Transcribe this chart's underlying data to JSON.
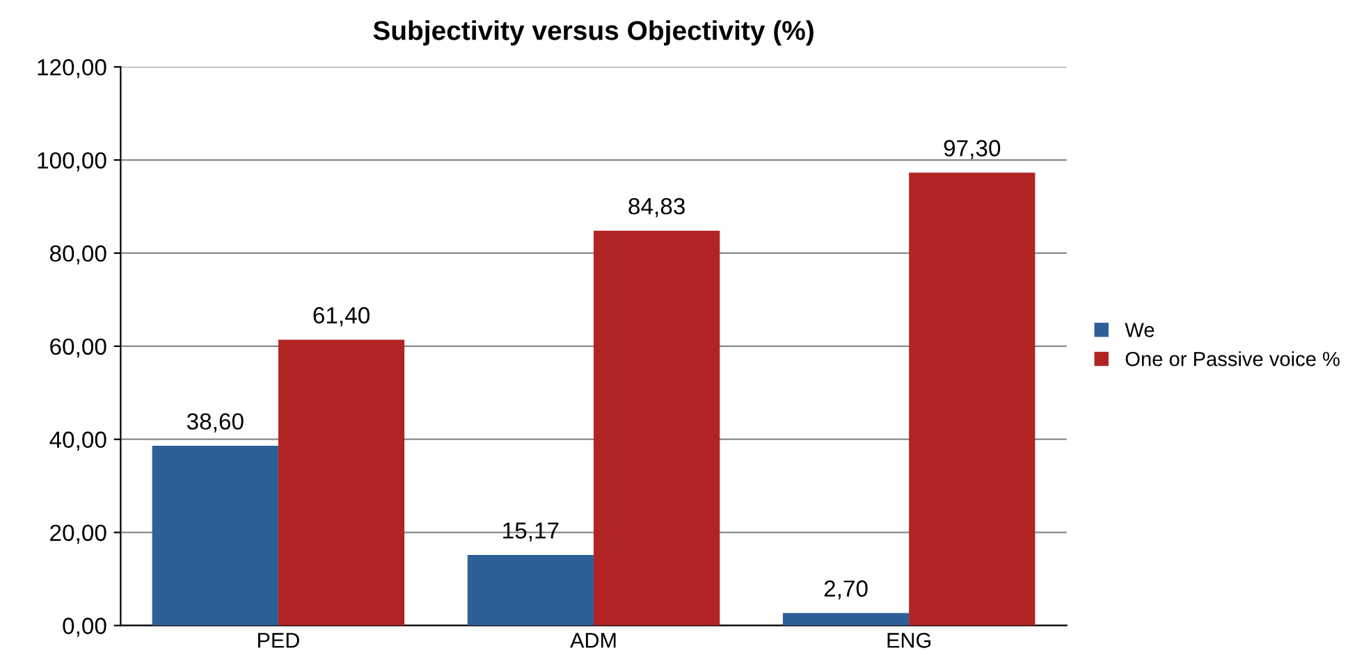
{
  "chart_data": {
    "type": "bar",
    "title": "Subjectivity versus Objectivity (%)",
    "categories": [
      "PED",
      "ADM",
      "ENG"
    ],
    "series": [
      {
        "name": "We",
        "color": "#2f5f97",
        "values": [
          38.6,
          15.17,
          2.7
        ],
        "value_labels": [
          "38,60",
          "15,17",
          "2,70"
        ]
      },
      {
        "name": "One or Passive voice %",
        "color": "#b22424",
        "values": [
          61.4,
          84.83,
          97.3
        ],
        "value_labels": [
          "61,40",
          "84,83",
          "97,30"
        ]
      }
    ],
    "ylim": [
      0,
      120
    ],
    "yticks": [
      {
        "value": 0,
        "label": "0,00"
      },
      {
        "value": 20,
        "label": "20,00"
      },
      {
        "value": 40,
        "label": "40,00"
      },
      {
        "value": 60,
        "label": "60,00"
      },
      {
        "value": 80,
        "label": "80,00"
      },
      {
        "value": 100,
        "label": "100,00"
      },
      {
        "value": 120,
        "label": "120,00"
      }
    ],
    "grid": "y",
    "legend": "right"
  }
}
